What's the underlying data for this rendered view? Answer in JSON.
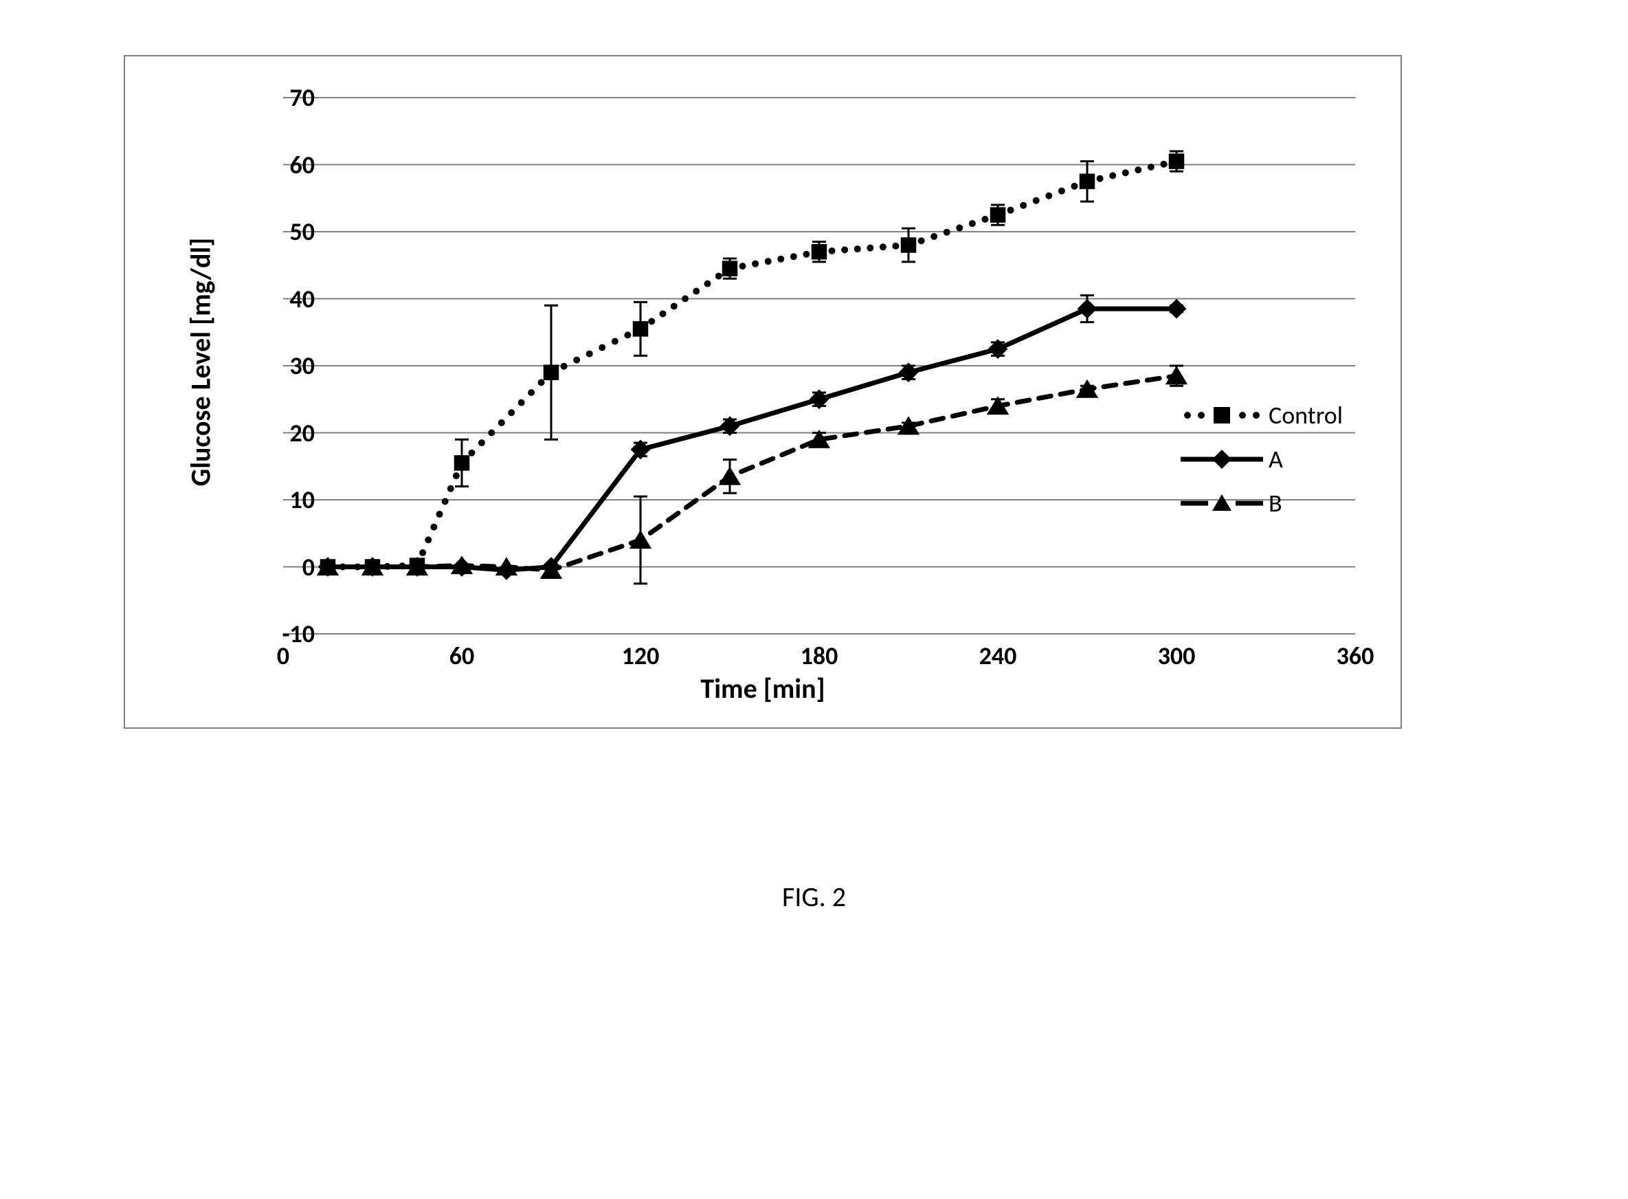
{
  "chart": {
    "type": "line-scatter-errorbar",
    "background_color": "#ffffff",
    "border_color": "#7f7f7f",
    "grid_color": "#808080",
    "axis_label_fontsize": 36,
    "axis_title_fontsize": 40,
    "axis_fontweight": "bold",
    "x_axis": {
      "title": "Time [min]",
      "min": 0,
      "max": 360,
      "tick_step": 60,
      "ticks": [
        0,
        60,
        120,
        180,
        240,
        300,
        360
      ]
    },
    "y_axis": {
      "title": "Glucose Level [mg/dl]",
      "min": -10,
      "max": 70,
      "tick_step": 10,
      "ticks": [
        -10,
        0,
        10,
        20,
        30,
        40,
        50,
        60,
        70
      ]
    },
    "marker_size": 18,
    "series": {
      "control": {
        "label": "Control",
        "color": "#000000",
        "line_style": "dotted",
        "line_width": 6,
        "dot_radius": 5,
        "marker": "square",
        "points": [
          {
            "x": 15,
            "y": 0,
            "err": 0
          },
          {
            "x": 30,
            "y": 0,
            "err": 0
          },
          {
            "x": 45,
            "y": 0.2,
            "err": 0
          },
          {
            "x": 60,
            "y": 15.5,
            "err": 3.5
          },
          {
            "x": 90,
            "y": 29,
            "err": 10
          },
          {
            "x": 120,
            "y": 35.5,
            "err": 4
          },
          {
            "x": 150,
            "y": 44.5,
            "err": 1.5
          },
          {
            "x": 180,
            "y": 47,
            "err": 1.5
          },
          {
            "x": 210,
            "y": 48,
            "err": 2.5
          },
          {
            "x": 240,
            "y": 52.5,
            "err": 1.5
          },
          {
            "x": 270,
            "y": 57.5,
            "err": 3
          },
          {
            "x": 300,
            "y": 60.5,
            "err": 1.5
          }
        ]
      },
      "A": {
        "label": "A",
        "color": "#000000",
        "line_style": "solid",
        "line_width": 7,
        "marker": "diamond",
        "points": [
          {
            "x": 15,
            "y": 0,
            "err": 0
          },
          {
            "x": 30,
            "y": 0,
            "err": 0
          },
          {
            "x": 45,
            "y": 0,
            "err": 0
          },
          {
            "x": 60,
            "y": 0,
            "err": 0
          },
          {
            "x": 75,
            "y": -0.5,
            "err": 0
          },
          {
            "x": 90,
            "y": 0,
            "err": 0
          },
          {
            "x": 120,
            "y": 17.5,
            "err": 1
          },
          {
            "x": 150,
            "y": 21,
            "err": 1
          },
          {
            "x": 180,
            "y": 25,
            "err": 1
          },
          {
            "x": 210,
            "y": 29,
            "err": 1
          },
          {
            "x": 240,
            "y": 32.5,
            "err": 1
          },
          {
            "x": 270,
            "y": 38.5,
            "err": 2
          },
          {
            "x": 300,
            "y": 38.5,
            "err": 0.5
          }
        ]
      },
      "B": {
        "label": "B",
        "color": "#000000",
        "line_style": "dashed",
        "line_width": 7,
        "dash": "18 14",
        "marker": "triangle",
        "points": [
          {
            "x": 15,
            "y": 0,
            "err": 0
          },
          {
            "x": 30,
            "y": 0,
            "err": 0
          },
          {
            "x": 45,
            "y": 0,
            "err": 0
          },
          {
            "x": 60,
            "y": 0.2,
            "err": 0
          },
          {
            "x": 75,
            "y": 0,
            "err": 0
          },
          {
            "x": 90,
            "y": -0.5,
            "err": 0
          },
          {
            "x": 120,
            "y": 4,
            "err": 6.5
          },
          {
            "x": 150,
            "y": 13.5,
            "err": 2.5
          },
          {
            "x": 180,
            "y": 19,
            "err": 1
          },
          {
            "x": 210,
            "y": 21,
            "err": 0.5
          },
          {
            "x": 240,
            "y": 24,
            "err": 1
          },
          {
            "x": 270,
            "y": 26.5,
            "err": 0.5
          },
          {
            "x": 300,
            "y": 28.5,
            "err": 1.5
          }
        ]
      }
    },
    "legend": {
      "position": "right-middle",
      "items": [
        "control",
        "A",
        "B"
      ]
    }
  },
  "caption": "FIG. 2"
}
